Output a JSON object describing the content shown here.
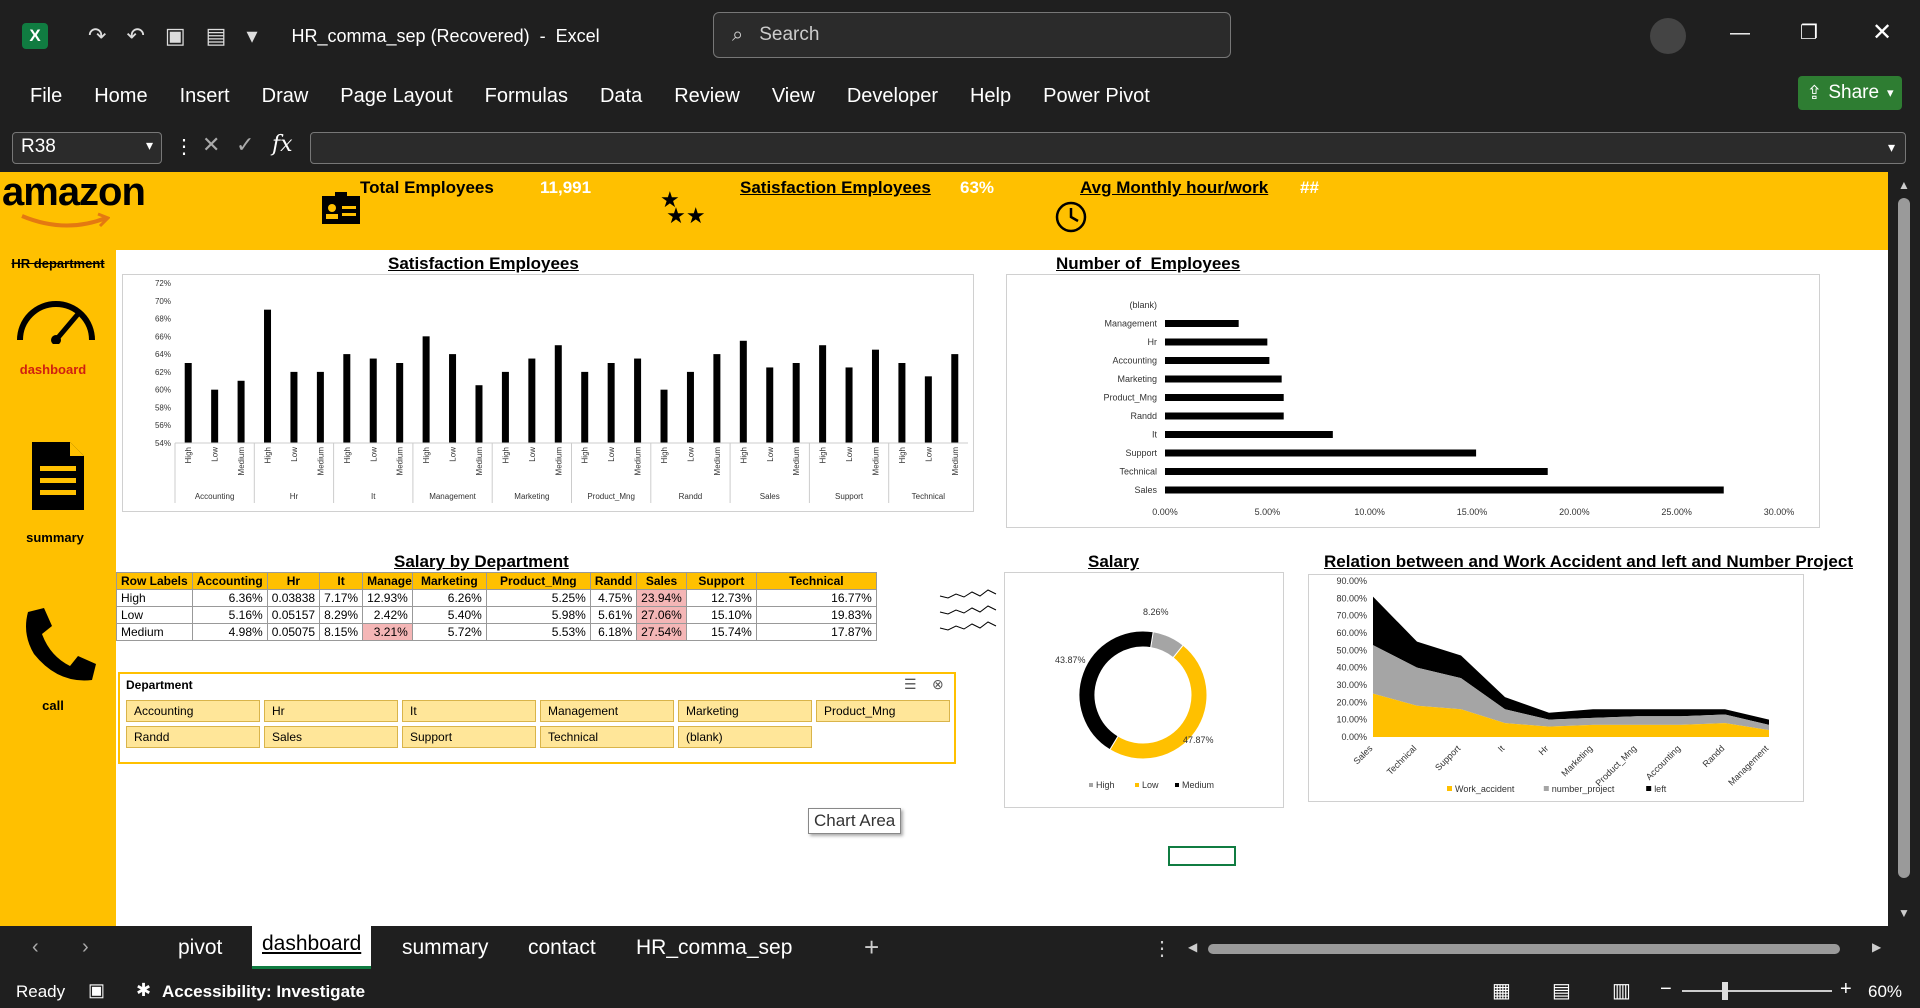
{
  "titlebar": {
    "doc_title": "HR_comma_sep (Recovered)  -  Excel",
    "search_placeholder": "Search"
  },
  "menu": [
    "File",
    "Home",
    "Insert",
    "Draw",
    "Page Layout",
    "Formulas",
    "Data",
    "Review",
    "View",
    "Developer",
    "Help",
    "Power Pivot"
  ],
  "share_label": "Share",
  "formula_bar": {
    "name_box": "R38",
    "fx": "fx"
  },
  "dashboard": {
    "logo": "amazon",
    "kpi1_label": "Total Employees",
    "kpi1_value": "11,991",
    "kpi2_label": "Satisfaction Employees",
    "kpi2_value": "63%",
    "kpi3_label": "Avg Monthly hour/work",
    "kpi3_value": "##",
    "sidebar": {
      "heading": "HR department",
      "dashboard": "dashboard",
      "summary": "summary",
      "call": "call"
    },
    "sat_title": "Satisfaction Employees",
    "num_title": "Number of  Employees",
    "salary_title": "Salary by Department",
    "donut_title": "Salary",
    "rel_title": "Relation between and Work Accident and left and Number Project",
    "tooltip": "Chart Area"
  },
  "sat_chart": {
    "type": "bar",
    "ylim": [
      0.54,
      0.72
    ],
    "yticks": [
      "72%",
      "70%",
      "68%",
      "66%",
      "64%",
      "62%",
      "60%",
      "58%",
      "56%",
      "54%"
    ],
    "groups": [
      "Accounting",
      "Hr",
      "It",
      "Management",
      "Marketing",
      "Product_Mng",
      "Randd",
      "Sales",
      "Support",
      "Technical"
    ],
    "levels": [
      "High",
      "Low",
      "Medium"
    ],
    "values": [
      [
        0.63,
        0.6,
        0.61
      ],
      [
        0.69,
        0.62,
        0.62
      ],
      [
        0.64,
        0.635,
        0.63
      ],
      [
        0.66,
        0.64,
        0.605
      ],
      [
        0.62,
        0.635,
        0.65
      ],
      [
        0.62,
        0.63,
        0.635
      ],
      [
        0.6,
        0.62,
        0.64
      ],
      [
        0.655,
        0.625,
        0.63
      ],
      [
        0.65,
        0.625,
        0.645
      ],
      [
        0.63,
        0.615,
        0.64
      ]
    ]
  },
  "num_chart": {
    "type": "bar",
    "xlim": [
      0,
      0.3
    ],
    "xticks": [
      "0.00%",
      "5.00%",
      "10.00%",
      "15.00%",
      "20.00%",
      "25.00%",
      "30.00%"
    ],
    "categories": [
      "(blank)",
      "Management",
      "Hr",
      "Accounting",
      "Marketing",
      "Product_Mng",
      "Randd",
      "It",
      "Support",
      "Technical",
      "Sales"
    ],
    "values": [
      0,
      0.036,
      0.05,
      0.051,
      0.057,
      0.058,
      0.058,
      0.082,
      0.152,
      0.187,
      0.273
    ]
  },
  "salary_table": {
    "headers": [
      "Row Labels",
      "Accounting",
      "Hr",
      "It",
      "Management",
      "Marketing",
      "Product_Mng",
      "Randd",
      "Sales",
      "Support",
      "Technical"
    ],
    "rows": [
      [
        "High",
        "6.36%",
        "0.03838",
        "7.17%",
        "12.93%",
        "6.26%",
        "5.25%",
        "4.75%",
        "23.94%",
        "12.73%",
        "16.77%"
      ],
      [
        "Low",
        "5.16%",
        "0.05157",
        "8.29%",
        "2.42%",
        "5.40%",
        "5.98%",
        "5.61%",
        "27.06%",
        "15.10%",
        "19.83%"
      ],
      [
        "Medium",
        "4.98%",
        "0.05075",
        "8.15%",
        "3.21%",
        "5.72%",
        "5.53%",
        "6.18%",
        "27.54%",
        "15.74%",
        "17.87%"
      ]
    ]
  },
  "slicer": {
    "title": "Department",
    "items": [
      "Accounting",
      "Hr",
      "It",
      "Management",
      "Marketing",
      "Product_Mng",
      "Randd",
      "Sales",
      "Support",
      "Technical",
      "(blank)"
    ]
  },
  "donut": {
    "type": "pie",
    "labels": [
      "High",
      "Low",
      "Medium"
    ],
    "values": [
      8.26,
      47.87,
      43.87
    ],
    "label_text": [
      "8.26%",
      "47.87%",
      "43.87%"
    ],
    "colors": [
      "#A5A5A5",
      "#FFC000",
      "#000000"
    ]
  },
  "rel_chart": {
    "type": "area",
    "categories": [
      "Sales",
      "Technical",
      "Support",
      "It",
      "Hr",
      "Marketing",
      "Product_Mng",
      "Accounting",
      "Randd",
      "Management"
    ],
    "yticks": [
      "90.00%",
      "80.00%",
      "70.00%",
      "60.00%",
      "50.00%",
      "40.00%",
      "30.00%",
      "20.00%",
      "10.00%",
      "0.00%"
    ],
    "ylim": [
      0,
      0.9
    ],
    "series": [
      {
        "name": "Work_accident",
        "values": [
          0.25,
          0.18,
          0.16,
          0.08,
          0.06,
          0.07,
          0.07,
          0.07,
          0.08,
          0.04
        ]
      },
      {
        "name": "number_project",
        "values": [
          0.28,
          0.22,
          0.18,
          0.08,
          0.04,
          0.04,
          0.05,
          0.05,
          0.05,
          0.03
        ]
      },
      {
        "name": "left",
        "values": [
          0.28,
          0.15,
          0.13,
          0.07,
          0.04,
          0.05,
          0.04,
          0.04,
          0.03,
          0.03
        ]
      }
    ]
  },
  "sheet_tabs": [
    "pivot",
    "dashboard",
    "summary",
    "contact",
    "HR_comma_sep"
  ],
  "active_tab": "dashboard",
  "status": {
    "ready": "Ready",
    "accessibility": "Accessibility: Investigate",
    "zoom": "60%"
  }
}
